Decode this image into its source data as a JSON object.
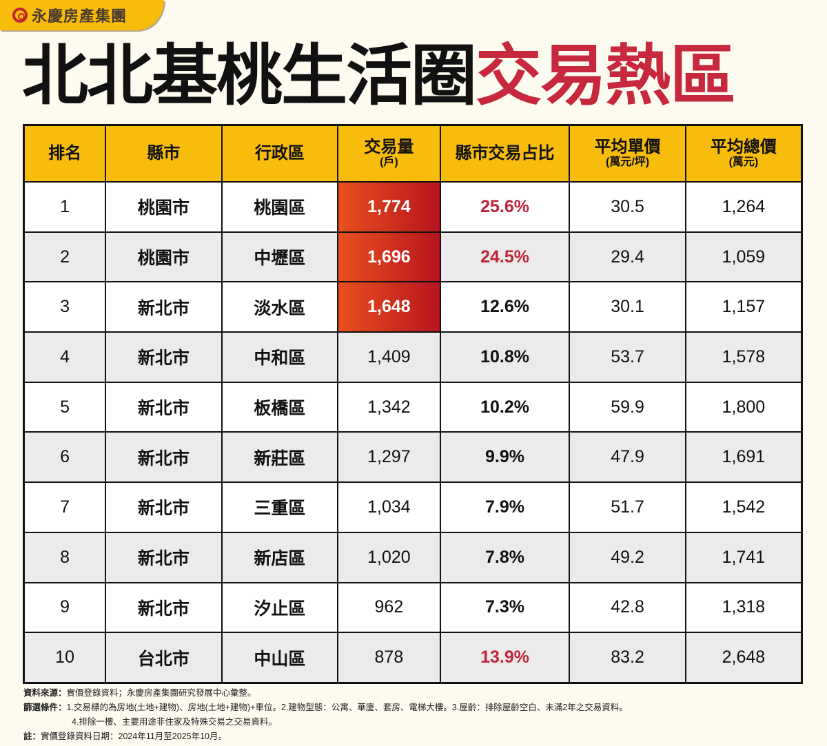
{
  "brand": {
    "logo_text": "永慶房產集團",
    "accent": "#f8bc0c",
    "red": "#c8283e"
  },
  "title": {
    "part1": "北北基桃生活圈",
    "part2": "交易熱區"
  },
  "table": {
    "headers": [
      {
        "label": "排名",
        "sub": ""
      },
      {
        "label": "縣市",
        "sub": ""
      },
      {
        "label": "行政區",
        "sub": ""
      },
      {
        "label": "交易量",
        "sub": "(戶)"
      },
      {
        "label": "縣市交易占比",
        "sub": ""
      },
      {
        "label": "平均單價",
        "sub": "(萬元/坪)"
      },
      {
        "label": "平均總價",
        "sub": "(萬元)"
      }
    ],
    "rows": [
      {
        "rank": "1",
        "city": "桃園市",
        "district": "桃園區",
        "volume": "1,774",
        "share": "25.6%",
        "unit_price": "30.5",
        "total_price": "1,264",
        "highlight_volume": true,
        "highlight_share": true
      },
      {
        "rank": "2",
        "city": "桃園市",
        "district": "中壢區",
        "volume": "1,696",
        "share": "24.5%",
        "unit_price": "29.4",
        "total_price": "1,059",
        "highlight_volume": true,
        "highlight_share": true
      },
      {
        "rank": "3",
        "city": "新北市",
        "district": "淡水區",
        "volume": "1,648",
        "share": "12.6%",
        "unit_price": "30.1",
        "total_price": "1,157",
        "highlight_volume": true,
        "highlight_share": false
      },
      {
        "rank": "4",
        "city": "新北市",
        "district": "中和區",
        "volume": "1,409",
        "share": "10.8%",
        "unit_price": "53.7",
        "total_price": "1,578",
        "highlight_volume": false,
        "highlight_share": false
      },
      {
        "rank": "5",
        "city": "新北市",
        "district": "板橋區",
        "volume": "1,342",
        "share": "10.2%",
        "unit_price": "59.9",
        "total_price": "1,800",
        "highlight_volume": false,
        "highlight_share": false
      },
      {
        "rank": "6",
        "city": "新北市",
        "district": "新莊區",
        "volume": "1,297",
        "share": "9.9%",
        "unit_price": "47.9",
        "total_price": "1,691",
        "highlight_volume": false,
        "highlight_share": false
      },
      {
        "rank": "7",
        "city": "新北市",
        "district": "三重區",
        "volume": "1,034",
        "share": "7.9%",
        "unit_price": "51.7",
        "total_price": "1,542",
        "highlight_volume": false,
        "highlight_share": false
      },
      {
        "rank": "8",
        "city": "新北市",
        "district": "新店區",
        "volume": "1,020",
        "share": "7.8%",
        "unit_price": "49.2",
        "total_price": "1,741",
        "highlight_volume": false,
        "highlight_share": false
      },
      {
        "rank": "9",
        "city": "新北市",
        "district": "汐止區",
        "volume": "962",
        "share": "7.3%",
        "unit_price": "42.8",
        "total_price": "1,318",
        "highlight_volume": false,
        "highlight_share": false
      },
      {
        "rank": "10",
        "city": "台北市",
        "district": "中山區",
        "volume": "878",
        "share": "13.9%",
        "unit_price": "83.2",
        "total_price": "2,648",
        "highlight_volume": false,
        "highlight_share": true
      }
    ]
  },
  "notes": {
    "source_label": "資料來源：",
    "source": "實價登錄資料；永慶房產集團研究發展中心彙整。",
    "filter_label": "篩選條件：",
    "filter_1": "1.交易標的為房地(土地+建物)、房地(土地+建物)+車位。2.建物型態：公寓、華廈、套房、電梯大樓。3.屋齡：排除屋齡空白、未滿2年之交易資料。",
    "filter_2": "4.排除一樓、主要用途非住家及特殊交易之交易資料。",
    "note_label": "註：",
    "note": "實價登錄資料日期：2024年11月至2025年10月。"
  }
}
